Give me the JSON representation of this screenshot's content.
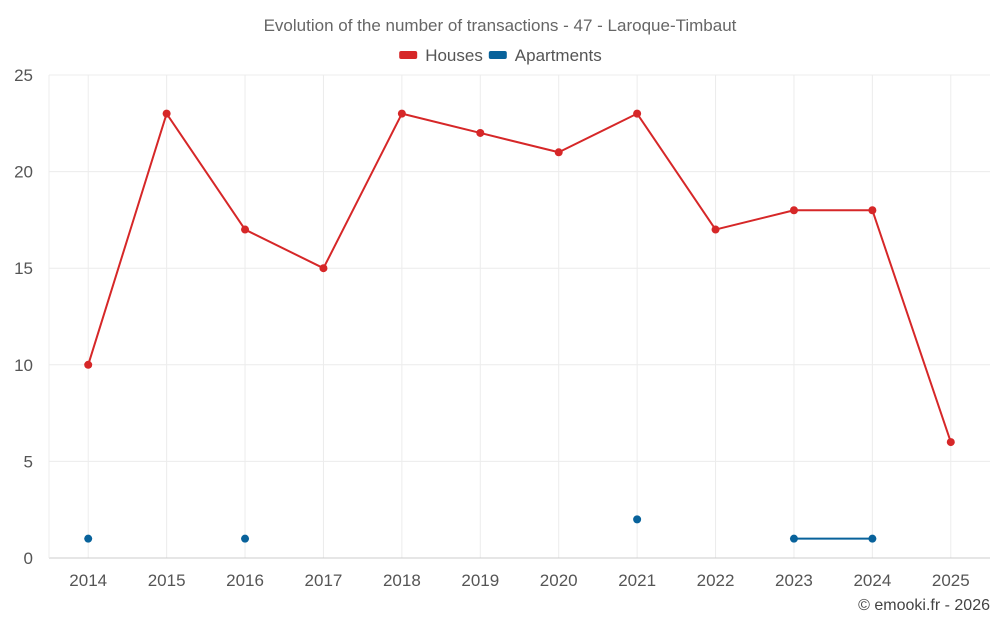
{
  "chart_data": {
    "type": "line",
    "title": "Evolution of the number of transactions - 47 - Laroque-Timbaut",
    "categories": [
      "2014",
      "2015",
      "2016",
      "2017",
      "2018",
      "2019",
      "2020",
      "2021",
      "2022",
      "2023",
      "2024",
      "2025"
    ],
    "ylim": [
      0,
      25
    ],
    "yticks": [
      0,
      5,
      10,
      15,
      20,
      25
    ],
    "ytick_labels": [
      "0",
      "5",
      "10",
      "15",
      "20",
      "25"
    ],
    "grid": true,
    "legend_position": "top-center",
    "series": [
      {
        "name": "Houses",
        "color": "#d62728",
        "values": [
          10,
          23,
          17,
          15,
          23,
          22,
          21,
          23,
          17,
          18,
          18,
          6
        ]
      },
      {
        "name": "Apartments",
        "color": "#08629b",
        "values": [
          1,
          null,
          1,
          null,
          null,
          null,
          null,
          2,
          null,
          1,
          1,
          null
        ]
      }
    ],
    "xlabel": "",
    "ylabel": ""
  },
  "credit": "© emooki.fr - 2026"
}
